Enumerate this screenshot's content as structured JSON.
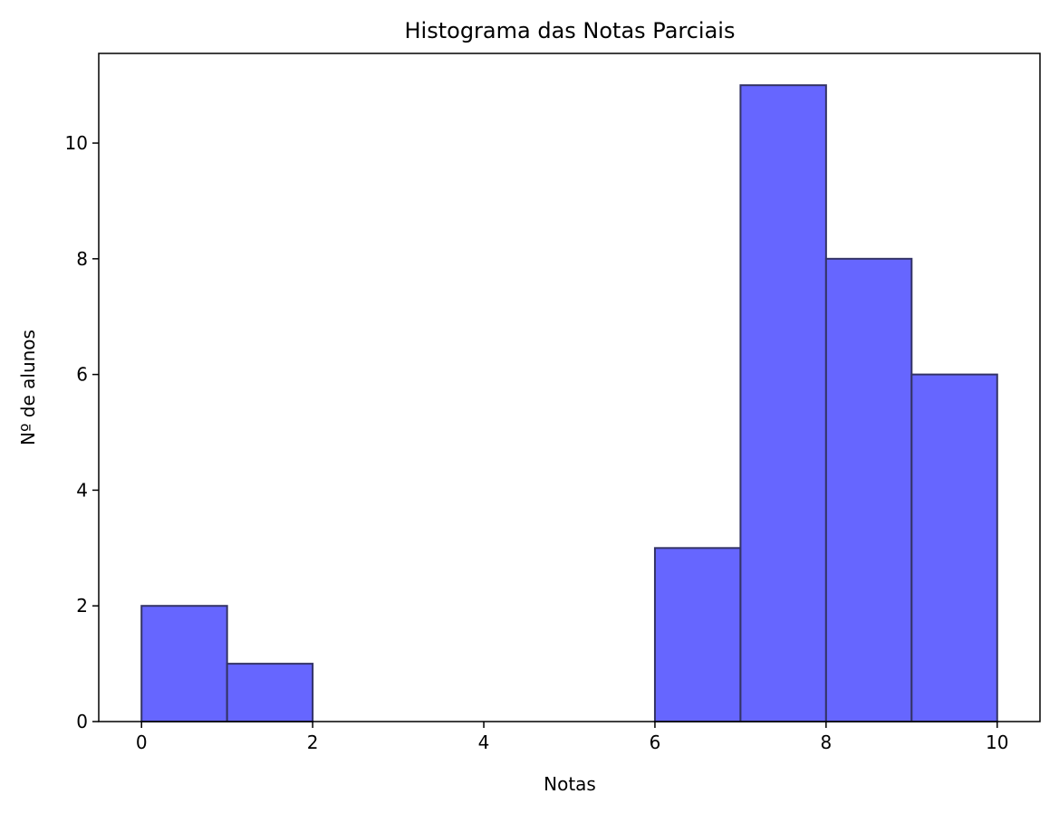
{
  "chart_data": {
    "type": "histogram",
    "title": "Histograma das Notas Parciais",
    "x_label": "Notas",
    "y_label": "Nº de alunos",
    "bins": [
      0,
      1,
      2,
      3,
      4,
      5,
      6,
      7,
      8,
      9,
      10
    ],
    "values": [
      2,
      1,
      0,
      0,
      0,
      0,
      3,
      11,
      8,
      6
    ],
    "color": "#6666ff",
    "xlim": [
      -0.5,
      10.5
    ],
    "ylim": [
      0,
      11.55
    ],
    "xticks": [
      0,
      2,
      4,
      6,
      8,
      10
    ],
    "yticks": [
      0,
      2,
      4,
      6,
      8,
      10
    ]
  }
}
